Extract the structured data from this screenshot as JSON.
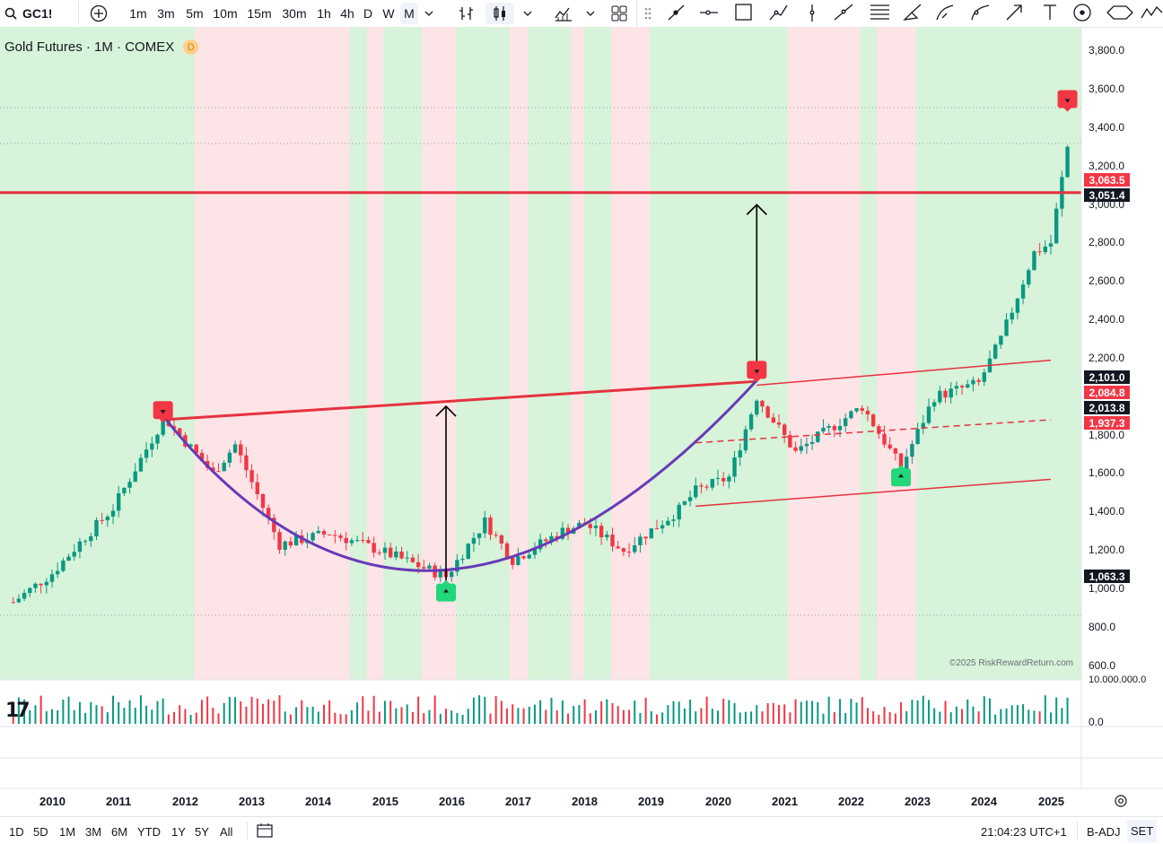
{
  "toolbar": {
    "symbol": "GC1!",
    "intervals": [
      "1m",
      "3m",
      "5m",
      "10m",
      "15m",
      "30m",
      "1h",
      "4h",
      "D",
      "W",
      "M"
    ],
    "active_interval": "M"
  },
  "legend": {
    "title": "Gold Futures · 1M · COMEX",
    "badge": "D"
  },
  "price_axis": {
    "ticks": [
      "3,800.0",
      "3,600.0",
      "3,400.0",
      "3,200.0",
      "3,000.0",
      "2,800.0",
      "2,600.0",
      "2,400.0",
      "2,200.0",
      "1,800.0",
      "1,600.0",
      "1,400.0",
      "1,200.0",
      "1,000.0",
      "800.0",
      "600.0"
    ],
    "tags": [
      {
        "label": "3,063.5",
        "color": "#f23645"
      },
      {
        "label": "3,051.4",
        "color": "#131722"
      },
      {
        "label": "2,101.0",
        "color": "#131722"
      },
      {
        "label": "2,084.8",
        "color": "#f23645"
      },
      {
        "label": "2,013.8",
        "color": "#131722"
      },
      {
        "label": "1,937.3",
        "color": "#f23645"
      },
      {
        "label": "1,063.3",
        "color": "#131722"
      }
    ]
  },
  "volume_axis": {
    "ticks": [
      "10,000,000.0",
      "0.0"
    ]
  },
  "time_axis": {
    "labels": [
      "2010",
      "2011",
      "2012",
      "2013",
      "2014",
      "2015",
      "2016",
      "2017",
      "2018",
      "2019",
      "2020",
      "2021",
      "2022",
      "2023",
      "2024",
      "2025"
    ]
  },
  "watermark": "©2025 RiskRewardReturn.com",
  "bottombar": {
    "ranges": [
      "1D",
      "5D",
      "1M",
      "3M",
      "6M",
      "YTD",
      "1Y",
      "5Y",
      "All"
    ],
    "clock": "21:04:23 UTC+1",
    "adj": "B-ADJ",
    "session": "SET"
  },
  "colors": {
    "up": "#089981",
    "down": "#f23645",
    "trendline": "#e5323f",
    "curve": "#673ab7",
    "bg_green": "#d7f3d9",
    "bg_red": "#fde4e6",
    "marker_up": "#22d67a"
  },
  "chart_data": {
    "type": "candlestick",
    "title": "Gold Futures · 1M · COMEX",
    "ylim": [
      600,
      3800
    ],
    "x_range": [
      "2009-06",
      "2025-12"
    ],
    "series_summary": [
      {
        "date": "2009-06",
        "close": 930
      },
      {
        "date": "2010-01",
        "close": 1080
      },
      {
        "date": "2010-06",
        "close": 1240
      },
      {
        "date": "2010-12",
        "close": 1420
      },
      {
        "date": "2011-08",
        "close": 1830
      },
      {
        "date": "2011-09",
        "close": 1900
      },
      {
        "date": "2012-06",
        "close": 1600
      },
      {
        "date": "2012-10",
        "close": 1750
      },
      {
        "date": "2013-06",
        "close": 1230
      },
      {
        "date": "2014-03",
        "close": 1290
      },
      {
        "date": "2014-12",
        "close": 1200
      },
      {
        "date": "2015-12",
        "close": 1063
      },
      {
        "date": "2016-07",
        "close": 1350
      },
      {
        "date": "2016-12",
        "close": 1150
      },
      {
        "date": "2017-09",
        "close": 1300
      },
      {
        "date": "2018-01",
        "close": 1340
      },
      {
        "date": "2018-08",
        "close": 1200
      },
      {
        "date": "2019-06",
        "close": 1410
      },
      {
        "date": "2019-09",
        "close": 1510
      },
      {
        "date": "2020-03",
        "close": 1580
      },
      {
        "date": "2020-08",
        "close": 2000
      },
      {
        "date": "2021-03",
        "close": 1710
      },
      {
        "date": "2022-03",
        "close": 1950
      },
      {
        "date": "2022-10",
        "close": 1630
      },
      {
        "date": "2023-04",
        "close": 2000
      },
      {
        "date": "2023-12",
        "close": 2070
      },
      {
        "date": "2024-04",
        "close": 2300
      },
      {
        "date": "2024-10",
        "close": 2750
      },
      {
        "date": "2025-01",
        "close": 2800
      },
      {
        "date": "2025-04",
        "close": 3300
      }
    ]
  }
}
